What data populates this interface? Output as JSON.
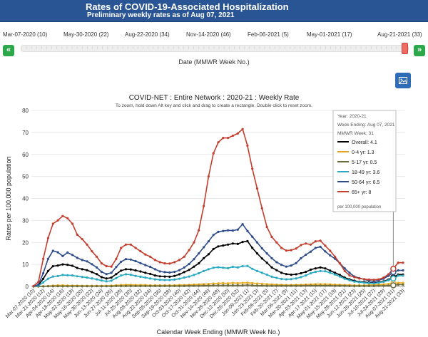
{
  "header": {
    "title": "Rates of COVID-19-Associated Hospitalization",
    "subtitle": "Preliminary weekly rates as of Aug 07, 2021"
  },
  "slider": {
    "labels": [
      "Mar-07-2020 (10)",
      "May-30-2020 (22)",
      "Aug-22-2020 (34)",
      "Nov-14-2020 (46)",
      "Feb-06-2021 (5)",
      "May-01-2021 (17)",
      "Aug-21-2021 (33)"
    ],
    "prev_label": "«",
    "next_label": "»",
    "axis_label": "Date (MMWR Week No.)",
    "selected_fraction": 0.97
  },
  "download": {
    "icon": "image-icon"
  },
  "chart_data": {
    "type": "line",
    "title": "COVID-NET : Entire Network : 2020-21 : Weekly Rate",
    "subtitle": "To zoom, hold down Alt key and click and drag to create a rectangle. Double click to reset zoom.",
    "xlabel": "Calendar Week Ending (MMWR Week No.)",
    "ylabel": "Rates per 100,000 population",
    "ylim": [
      0,
      80
    ],
    "yticks": [
      0,
      10,
      20,
      30,
      40,
      50,
      60,
      70,
      80
    ],
    "grid": true,
    "x": [
      "Mar-07-2020 (10)",
      "Mar-14-2020 (11)",
      "Mar-21-2020 (12)",
      "Mar-28-2020 (13)",
      "Apr-04-2020 (14)",
      "Apr-11-2020 (15)",
      "Apr-18-2020 (16)",
      "Apr-25-2020 (17)",
      "May-02-2020 (18)",
      "May-09-2020 (19)",
      "May-16-2020 (20)",
      "May-23-2020 (21)",
      "May-30-2020 (22)",
      "Jun-06-2020 (23)",
      "Jun-13-2020 (24)",
      "Jun-20-2020 (25)",
      "Jun-27-2020 (26)",
      "Jul-04-2020 (27)",
      "Jul-11-2020 (28)",
      "Jul-18-2020 (29)",
      "Jul-25-2020 (30)",
      "Aug-01-2020 (31)",
      "Aug-08-2020 (32)",
      "Aug-15-2020 (33)",
      "Aug-22-2020 (34)",
      "Aug-29-2020 (35)",
      "Sep-05-2020 (36)",
      "Sep-12-2020 (37)",
      "Sep-19-2020 (38)",
      "Sep-26-2020 (39)",
      "Oct-03-2020 (40)",
      "Oct-10-2020 (41)",
      "Oct-17-2020 (42)",
      "Oct-24-2020 (43)",
      "Oct-31-2020 (44)",
      "Nov-07-2020 (45)",
      "Nov-14-2020 (46)",
      "Nov-21-2020 (47)",
      "Nov-28-2020 (48)",
      "Dec-05-2020 (49)",
      "Dec-12-2020 (50)",
      "Dec-19-2020 (51)",
      "Dec-26-2020 (52)",
      "Jan-02-2021 (53)",
      "Jan-09-2021 (1)",
      "Jan-16-2021 (2)",
      "Jan-23-2021 (3)",
      "Jan-30-2021 (4)",
      "Feb-06-2021 (5)",
      "Feb-13-2021 (6)",
      "Feb-20-2021 (7)",
      "Feb-27-2021 (8)",
      "Mar-06-2021 (9)",
      "Mar-13-2021 (10)",
      "Mar-20-2021 (11)",
      "Mar-27-2021 (12)",
      "Apr-03-2021 (13)",
      "Apr-10-2021 (14)",
      "Apr-17-2021 (15)",
      "Apr-24-2021 (16)",
      "May-01-2021 (17)",
      "May-08-2021 (18)",
      "May-15-2021 (19)",
      "May-22-2021 (20)",
      "May-29-2021 (21)",
      "Jun-05-2021 (22)",
      "Jun-12-2021 (23)",
      "Jun-19-2021 (24)",
      "Jun-26-2021 (25)",
      "Jul-03-2021 (26)",
      "Jul-10-2021 (27)",
      "Jul-17-2021 (28)",
      "Jul-24-2021 (29)",
      "Jul-31-2021 (30)",
      "Aug-07-2021 (31)",
      "Aug-14-2021 (32)",
      "Aug-21-2021 (33)"
    ],
    "x_tick_labels": [
      "Mar-07-2020 (10)",
      "Mar-21-2020 (12)",
      "Apr-04-2020 (14)",
      "Apr-18-2020 (16)",
      "May-02-2020 (18)",
      "May-16-2020 (20)",
      "May-30-2020 (22)",
      "Jun-13-2020 (24)",
      "Jun-27-2020 (26)",
      "Jul-11-2020 (28)",
      "Jul-25-2020 (30)",
      "Aug-08-2020 (32)",
      "Aug-22-2020 (34)",
      "Sep-05-2020 (36)",
      "Sep-19-2020 (38)",
      "Oct-03-2020 (40)",
      "Oct-17-2020 (42)",
      "Oct-31-2020 (44)",
      "Nov-14-2020 (46)",
      "Nov-28-2020 (48)",
      "Dec-12-2020 (50)",
      "Dec-26-2020 (52)",
      "Jan-09-2021 (1)",
      "Jan-23-2021 (3)",
      "Feb-06-2021 (5)",
      "Feb-20-2021 (7)",
      "Mar-06-2021 (9)",
      "Mar-20-2021 (11)",
      "Apr-03-2021 (13)",
      "Apr-17-2021 (15)",
      "May-01-2021 (17)",
      "May-15-2021 (19)",
      "May-29-2021 (21)",
      "Jun-12-2021 (23)",
      "Jun-26-2021 (25)",
      "Jul-10-2021 (27)",
      "Jul-24-2021 (29)",
      "Aug-07-2021 (31)",
      "Aug-21-2021 (33)"
    ],
    "series": [
      {
        "name": "Overall",
        "color": "#000000",
        "values": [
          0.1,
          0.5,
          3.5,
          7.0,
          9.2,
          9.5,
          10.0,
          9.8,
          9.4,
          8.4,
          7.8,
          7.4,
          6.5,
          5.6,
          4.2,
          3.6,
          4.0,
          5.6,
          7.2,
          7.8,
          7.7,
          7.3,
          6.8,
          6.2,
          5.7,
          5.0,
          4.6,
          4.5,
          4.4,
          4.8,
          5.5,
          6.5,
          7.5,
          9.0,
          10.5,
          12.8,
          14.6,
          17.0,
          18.2,
          18.6,
          19.0,
          19.5,
          19.3,
          20.2,
          20.6,
          17.5,
          15.0,
          12.7,
          10.8,
          8.6,
          7.4,
          6.2,
          5.6,
          5.3,
          5.5,
          6.0,
          6.6,
          7.6,
          8.2,
          8.6,
          8.2,
          7.2,
          6.2,
          5.2,
          4.0,
          3.2,
          2.6,
          2.1,
          2.0,
          1.7,
          1.6,
          1.9,
          2.3,
          3.1,
          4.1,
          5.4,
          5.4
        ]
      },
      {
        "name": "0-4 yr",
        "color": "#e6a81e",
        "values": [
          0.0,
          0.0,
          0.1,
          0.2,
          0.4,
          0.5,
          0.5,
          0.4,
          0.4,
          0.4,
          0.3,
          0.3,
          0.3,
          0.3,
          0.3,
          0.3,
          0.4,
          0.5,
          0.6,
          0.7,
          0.7,
          0.6,
          0.6,
          0.6,
          0.5,
          0.5,
          0.5,
          0.5,
          0.5,
          0.5,
          0.6,
          0.6,
          0.7,
          0.8,
          0.9,
          1.0,
          1.1,
          1.3,
          1.4,
          1.5,
          1.4,
          1.6,
          1.5,
          1.6,
          1.7,
          1.5,
          1.3,
          1.2,
          1.0,
          0.9,
          0.8,
          0.7,
          0.6,
          0.6,
          0.7,
          0.7,
          0.8,
          0.9,
          1.0,
          1.0,
          1.0,
          0.9,
          0.8,
          0.7,
          0.6,
          0.6,
          0.5,
          0.5,
          0.5,
          0.6,
          0.7,
          0.8,
          0.9,
          1.1,
          1.3,
          1.6,
          1.6
        ]
      },
      {
        "name": "5-17 yr",
        "color": "#6b6b3a",
        "values": [
          0.0,
          0.0,
          0.0,
          0.1,
          0.1,
          0.1,
          0.1,
          0.1,
          0.1,
          0.1,
          0.1,
          0.1,
          0.1,
          0.1,
          0.1,
          0.1,
          0.1,
          0.2,
          0.2,
          0.2,
          0.2,
          0.2,
          0.2,
          0.2,
          0.2,
          0.2,
          0.2,
          0.2,
          0.2,
          0.2,
          0.2,
          0.2,
          0.3,
          0.3,
          0.3,
          0.4,
          0.4,
          0.5,
          0.5,
          0.5,
          0.5,
          0.5,
          0.5,
          0.5,
          0.6,
          0.5,
          0.4,
          0.4,
          0.3,
          0.3,
          0.3,
          0.3,
          0.3,
          0.3,
          0.3,
          0.3,
          0.4,
          0.4,
          0.4,
          0.4,
          0.4,
          0.4,
          0.3,
          0.3,
          0.3,
          0.2,
          0.2,
          0.2,
          0.2,
          0.2,
          0.2,
          0.3,
          0.3,
          0.4,
          0.5,
          0.8,
          0.8
        ]
      },
      {
        "name": "18-49 yr",
        "color": "#29a9c2",
        "values": [
          0.1,
          0.3,
          1.8,
          3.5,
          4.5,
          4.7,
          5.2,
          5.1,
          5.0,
          4.6,
          4.3,
          4.0,
          3.6,
          3.2,
          2.7,
          2.3,
          2.6,
          3.8,
          5.0,
          5.5,
          5.3,
          4.8,
          4.4,
          4.0,
          3.6,
          3.2,
          3.0,
          2.9,
          2.9,
          3.1,
          3.5,
          4.0,
          4.5,
          5.2,
          6.0,
          7.0,
          7.8,
          8.5,
          8.7,
          8.5,
          8.3,
          8.9,
          8.6,
          9.2,
          9.3,
          8.0,
          7.0,
          6.2,
          5.3,
          4.4,
          3.9,
          3.4,
          3.2,
          3.3,
          3.6,
          4.2,
          5.0,
          6.0,
          6.6,
          7.0,
          6.9,
          6.2,
          5.4,
          4.5,
          3.5,
          2.8,
          2.2,
          1.9,
          1.7,
          1.5,
          1.4,
          1.7,
          2.1,
          2.8,
          3.6,
          4.9,
          4.9
        ]
      },
      {
        "name": "50-64 yr",
        "color": "#2e4c8a",
        "values": [
          0.1,
          0.8,
          6.0,
          12.5,
          16.2,
          15.5,
          13.8,
          15.4,
          14.3,
          13.0,
          12.0,
          11.4,
          10.1,
          8.6,
          6.6,
          5.6,
          6.2,
          8.8,
          11.2,
          12.4,
          12.2,
          11.5,
          10.6,
          9.7,
          8.9,
          7.8,
          6.8,
          6.5,
          6.3,
          6.6,
          7.4,
          8.6,
          10.2,
          12.4,
          15.0,
          17.8,
          20.5,
          23.4,
          24.8,
          25.2,
          25.5,
          25.4,
          25.8,
          28.3,
          25.2,
          22.6,
          20.0,
          17.3,
          15.0,
          12.8,
          11.0,
          9.8,
          9.0,
          9.5,
          10.6,
          12.8,
          14.4,
          15.8,
          17.5,
          18.0,
          15.9,
          14.1,
          12.6,
          10.5,
          8.2,
          6.2,
          4.5,
          3.8,
          3.2,
          2.6,
          2.2,
          2.8,
          3.5,
          4.8,
          6.5,
          7.3,
          7.3
        ]
      },
      {
        "name": "65+ yr",
        "color": "#c33e2e",
        "values": [
          0.2,
          2.0,
          12.5,
          22.0,
          28.5,
          30.0,
          32.0,
          31.0,
          28.5,
          23.5,
          21.5,
          19.0,
          16.0,
          13.5,
          10.5,
          9.2,
          9.0,
          12.5,
          17.5,
          19.0,
          19.0,
          17.5,
          16.0,
          14.5,
          13.5,
          12.0,
          11.0,
          10.5,
          10.4,
          11.0,
          12.0,
          13.5,
          16.5,
          20.0,
          25.5,
          36.5,
          50.0,
          60.5,
          65.5,
          67.5,
          67.5,
          68.5,
          69.5,
          71.5,
          64.0,
          53.5,
          44.5,
          35.5,
          27.0,
          22.5,
          20.0,
          17.5,
          16.3,
          16.5,
          17.2,
          18.8,
          19.5,
          19.0,
          20.5,
          20.8,
          18.5,
          16.2,
          13.5,
          10.5,
          7.0,
          5.0,
          4.2,
          3.6,
          3.3,
          3.1,
          3.0,
          3.2,
          4.0,
          5.5,
          8.0,
          10.8,
          10.8
        ]
      }
    ],
    "legend": {
      "position": "top-right",
      "header_lines": [
        "Year: 2020-21",
        "Week Ending: Aug 07, 2021",
        "MMWR Week: 31"
      ],
      "footer": "per 100,000 population"
    },
    "hover_index": 74
  }
}
